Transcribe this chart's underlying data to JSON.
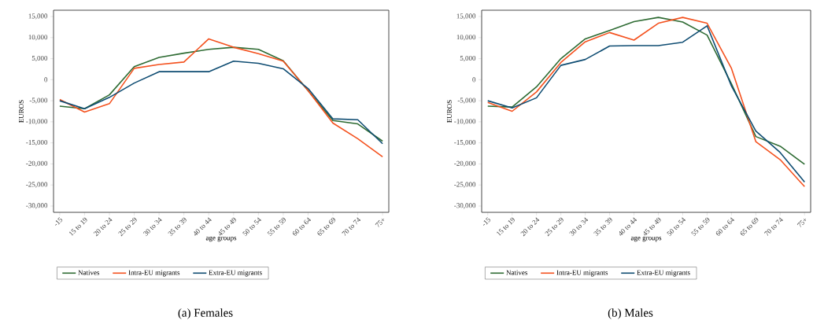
{
  "chart_data": [
    {
      "type": "line",
      "title": "(a) Females",
      "xlabel": "age groups",
      "ylabel": "EUROS",
      "categories": [
        "-15",
        "15 to 19",
        "20 to 24",
        "25 to 29",
        "30 to 34",
        "35 to 39",
        "40 to 44",
        "45 to 49",
        "50 to 54",
        "55 to 59",
        "60 to 64",
        "65 to 69",
        "70 to 74",
        "75+"
      ],
      "series": [
        {
          "name": "Natives",
          "color": "#2e6b33",
          "values": [
            -6300,
            -6900,
            -3600,
            3100,
            5300,
            6300,
            7200,
            7700,
            7200,
            4500,
            -2600,
            -9700,
            -10500,
            -14600
          ]
        },
        {
          "name": "Intra-EU migrants",
          "color": "#f4511e",
          "values": [
            -4700,
            -7700,
            -5700,
            2700,
            3600,
            4200,
            9700,
            7700,
            6200,
            4400,
            -2600,
            -10300,
            -14000,
            -18300
          ]
        },
        {
          "name": "Extra-EU migrants",
          "color": "#0e4c72",
          "values": [
            -5000,
            -6900,
            -4200,
            -800,
            1900,
            1900,
            1900,
            4400,
            3900,
            2600,
            -2100,
            -9300,
            -9500,
            -15200
          ]
        }
      ],
      "ylim": [
        -31500,
        16500
      ],
      "yticks": [
        {
          "value": -30000,
          "label": "-30,000"
        },
        {
          "value": -25000,
          "label": "-25,000"
        },
        {
          "value": -20000,
          "label": "-20,000"
        },
        {
          "value": -15000,
          "label": "-15,000"
        },
        {
          "value": -10000,
          "label": "-10,000"
        },
        {
          "value": -5000,
          "label": "-5,000"
        },
        0,
        {
          "value": 5000,
          "label": "5,000"
        },
        {
          "value": 10000,
          "label": "10,000"
        },
        {
          "value": 15000,
          "label": "15,000"
        }
      ],
      "legend": "bottom",
      "grid": false
    },
    {
      "type": "line",
      "title": "(b) Males",
      "xlabel": "age groups",
      "ylabel": "EUROS",
      "categories": [
        "-15",
        "15 to 19",
        "20 to 24",
        "25 to 29",
        "30 to 34",
        "35 to 39",
        "40 to 44",
        "45 to 49",
        "50 to 54",
        "55 to 59",
        "60 to 64",
        "65 to 69",
        "70 to 74",
        "75+"
      ],
      "series": [
        {
          "name": "Natives",
          "color": "#2e6b33",
          "values": [
            -6300,
            -6500,
            -1700,
            5000,
            9700,
            11700,
            13800,
            14800,
            13700,
            10600,
            -1000,
            -13500,
            -15800,
            -20100
          ]
        },
        {
          "name": "Intra-EU migrants",
          "color": "#f4511e",
          "values": [
            -5400,
            -7500,
            -2900,
            4100,
            9000,
            11200,
            9400,
            13400,
            14800,
            13400,
            2700,
            -14700,
            -19000,
            -25400
          ]
        },
        {
          "name": "Extra-EU migrants",
          "color": "#0e4c72",
          "values": [
            -5000,
            -6700,
            -4300,
            3400,
            4800,
            8000,
            8100,
            8100,
            8900,
            12800,
            -1500,
            -12200,
            -17300,
            -24300
          ]
        }
      ],
      "ylim": [
        -31500,
        16500
      ],
      "yticks": [
        {
          "value": -30000,
          "label": "-30,000"
        },
        {
          "value": -25000,
          "label": "-25,000"
        },
        {
          "value": -20000,
          "label": "-20,000"
        },
        {
          "value": -15000,
          "label": "-15,000"
        },
        {
          "value": -10000,
          "label": "-10,000"
        },
        {
          "value": -5000,
          "label": "-5,000"
        },
        0,
        {
          "value": 5000,
          "label": "5,000"
        },
        {
          "value": 10000,
          "label": "10,000"
        },
        {
          "value": 15000,
          "label": "15,000"
        }
      ],
      "legend": "bottom",
      "grid": false
    }
  ]
}
